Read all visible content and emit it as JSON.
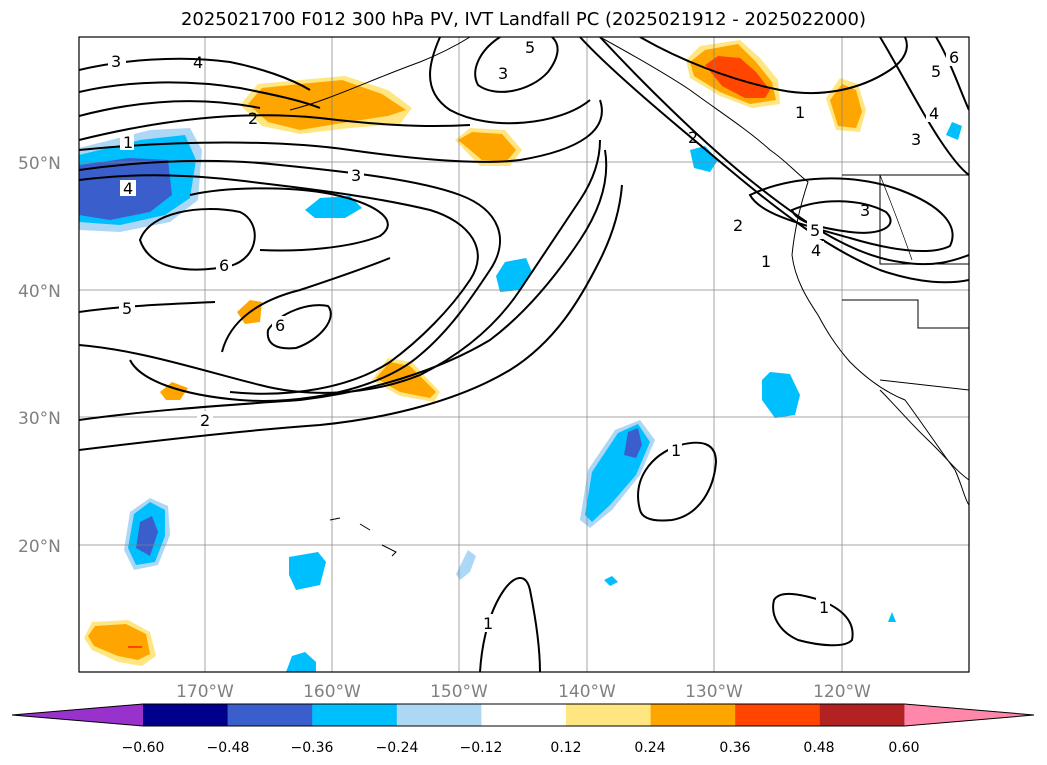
{
  "title": "2025021700 F012 300 hPa PV, IVT Landfall PC (2025021912 - 2025022000)",
  "axes": {
    "lon_labels": [
      "170°W",
      "160°W",
      "150°W",
      "140°W",
      "130°W",
      "120°W"
    ],
    "lat_labels": [
      "50°N",
      "40°N",
      "30°N",
      "20°N"
    ]
  },
  "contour_labels": {
    "pv": [
      "3",
      "4",
      "1",
      "4",
      "3",
      "6",
      "5",
      "6",
      "2",
      "5",
      "3",
      "2",
      "1",
      "2",
      "3",
      "5",
      "4",
      "2",
      "1",
      "1",
      "1",
      "1",
      "5",
      "3",
      "4",
      "6"
    ]
  },
  "colorbar": {
    "ticks": [
      "−0.60",
      "−0.48",
      "−0.36",
      "−0.24",
      "−0.12",
      "0.12",
      "0.24",
      "0.36",
      "0.48",
      "0.60"
    ],
    "colors": [
      "#9932cc",
      "#00008b",
      "#3a5fcd",
      "#00bfff",
      "#add8f5",
      "#ffffff",
      "#ffe680",
      "#ffa500",
      "#ff4500",
      "#b22222",
      "#ff88aa"
    ]
  }
}
